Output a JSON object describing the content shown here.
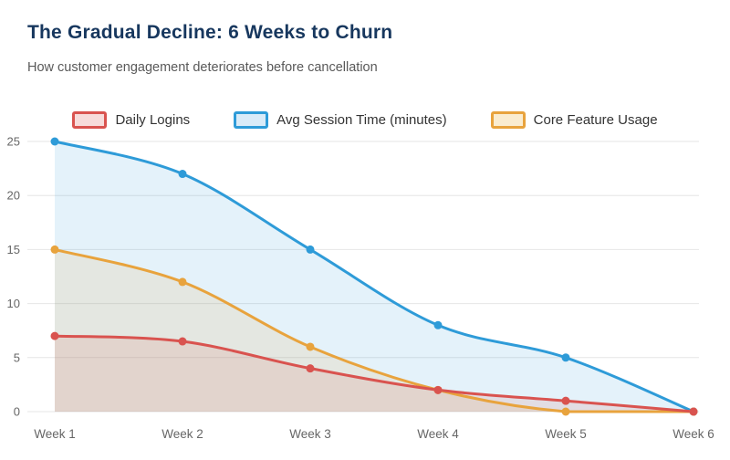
{
  "header": {
    "title": "The Gradual Decline: 6 Weeks to Churn",
    "subtitle": "How customer engagement deteriorates before cancellation"
  },
  "chart_data": {
    "type": "line",
    "title": "The Gradual Decline: 6 Weeks to Churn",
    "subtitle": "How customer engagement deteriorates before cancellation",
    "categories": [
      "Week 1",
      "Week 2",
      "Week 3",
      "Week 4",
      "Week 5",
      "Week 6"
    ],
    "series": [
      {
        "name": "Daily Logins",
        "color": "#d9534f",
        "tint": "#f7dbda",
        "values": [
          7,
          6.5,
          4,
          2,
          1,
          0
        ]
      },
      {
        "name": "Avg Session Time (minutes)",
        "color": "#2e9bd8",
        "tint": "#d9ebf8",
        "values": [
          25,
          22,
          15,
          8,
          5,
          0
        ]
      },
      {
        "name": "Core Feature Usage",
        "color": "#e8a33d",
        "tint": "#faeccf",
        "values": [
          15,
          12,
          6,
          2,
          0,
          0
        ]
      }
    ],
    "ylim": [
      0,
      25
    ],
    "yticks": [
      0,
      5,
      10,
      15,
      20,
      25
    ],
    "xlabel": "",
    "ylabel": "",
    "grid": true,
    "legend_position": "top",
    "area_fill_opacity": 0.13,
    "axis_text_color": "#666666",
    "grid_color": "#e6e6e6"
  }
}
